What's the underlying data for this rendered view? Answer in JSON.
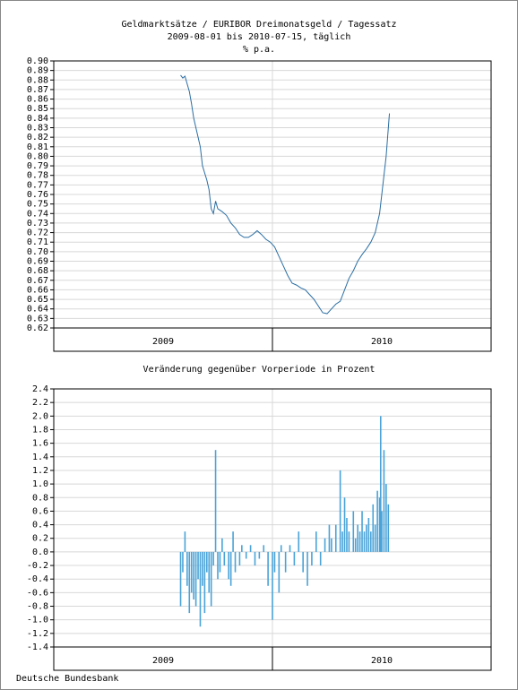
{
  "chart_data": [
    {
      "type": "line",
      "title": "Geldmarktsätze / EURIBOR Dreimonatsgeld / Tagessatz",
      "subtitle": "2009-08-01 bis 2010-07-15, täglich",
      "y_label": "% p.a.",
      "color": "#2b6ea3",
      "grid": true,
      "xlim": [
        2009,
        2011
      ],
      "xticks": [
        2009,
        2010,
        2011
      ],
      "xlabels": [
        2009,
        2010
      ],
      "ylim": [
        0.62,
        0.9
      ],
      "yticks": [
        0.62,
        0.63,
        0.64,
        0.65,
        0.66,
        0.67,
        0.68,
        0.69,
        {
          "value": 0.7,
          "label": "0.70"
        },
        0.71,
        0.72,
        0.73,
        0.74,
        0.75,
        0.76,
        0.77,
        0.78,
        0.79,
        {
          "value": 0.8,
          "label": "0.80"
        },
        0.81,
        0.82,
        0.83,
        0.84,
        0.85,
        0.86,
        0.87,
        0.88,
        0.89,
        {
          "value": 0.9,
          "label": "0.90"
        }
      ],
      "x": [
        2009.58,
        2009.59,
        2009.6,
        2009.62,
        2009.63,
        2009.64,
        2009.66,
        2009.67,
        2009.68,
        2009.7,
        2009.71,
        2009.72,
        2009.73,
        2009.74,
        2009.75,
        2009.77,
        2009.79,
        2009.81,
        2009.83,
        2009.85,
        2009.87,
        2009.89,
        2009.91,
        2009.93,
        2009.95,
        2009.97,
        2009.99,
        2010.01,
        2010.03,
        2010.05,
        2010.07,
        2010.09,
        2010.11,
        2010.13,
        2010.15,
        2010.17,
        2010.19,
        2010.21,
        2010.23,
        2010.25,
        2010.27,
        2010.29,
        2010.31,
        2010.33,
        2010.35,
        2010.37,
        2010.39,
        2010.41,
        2010.43,
        2010.45,
        2010.47,
        2010.49,
        2010.5,
        2010.51,
        2010.52,
        2010.53,
        2010.535
      ],
      "values": [
        0.885,
        0.882,
        0.884,
        0.868,
        0.855,
        0.84,
        0.82,
        0.81,
        0.79,
        0.775,
        0.765,
        0.745,
        0.74,
        0.753,
        0.745,
        0.742,
        0.738,
        0.73,
        0.725,
        0.718,
        0.715,
        0.715,
        0.718,
        0.722,
        0.718,
        0.713,
        0.71,
        0.705,
        0.695,
        0.685,
        0.675,
        0.667,
        0.665,
        0.662,
        0.66,
        0.655,
        0.65,
        0.643,
        0.636,
        0.635,
        0.64,
        0.645,
        0.648,
        0.66,
        0.672,
        0.68,
        0.69,
        0.697,
        0.703,
        0.71,
        0.72,
        0.74,
        0.76,
        0.78,
        0.8,
        0.83,
        0.845
      ]
    },
    {
      "type": "bar",
      "title": "Veränderung gegenüber Vorperiode in Prozent",
      "color": "#4aa3d8",
      "grid": true,
      "xlim": [
        2009,
        2011
      ],
      "xticks": [
        2009,
        2010,
        2011
      ],
      "xlabels": [
        2009,
        2010
      ],
      "ylim": [
        -1.4,
        2.4
      ],
      "yticks": [
        -1.4,
        -1.2,
        {
          "value": -1,
          "label": "-1.0"
        },
        -0.8,
        -0.6,
        -0.4,
        -0.2,
        {
          "value": 0,
          "label": "0.0"
        },
        0.2,
        0.4,
        0.6,
        0.8,
        {
          "value": 1,
          "label": "1.0"
        },
        1.2,
        1.4,
        1.6,
        1.8,
        {
          "value": 2,
          "label": "2.0"
        },
        2.2,
        2.4
      ],
      "x": [
        2009.58,
        2009.59,
        2009.6,
        2009.61,
        2009.62,
        2009.63,
        2009.64,
        2009.65,
        2009.66,
        2009.67,
        2009.68,
        2009.69,
        2009.7,
        2009.71,
        2009.72,
        2009.73,
        2009.74,
        2009.75,
        2009.76,
        2009.77,
        2009.78,
        2009.8,
        2009.81,
        2009.82,
        2009.83,
        2009.85,
        2009.86,
        2009.88,
        2009.9,
        2009.92,
        2009.94,
        2009.96,
        2009.98,
        2010,
        2010.01,
        2010.03,
        2010.04,
        2010.06,
        2010.08,
        2010.1,
        2010.12,
        2010.14,
        2010.16,
        2010.18,
        2010.2,
        2010.22,
        2010.24,
        2010.26,
        2010.27,
        2010.29,
        2010.31,
        2010.32,
        2010.33,
        2010.34,
        2010.35,
        2010.37,
        2010.38,
        2010.39,
        2010.4,
        2010.41,
        2010.42,
        2010.43,
        2010.44,
        2010.45,
        2010.46,
        2010.47,
        2010.48,
        2010.49,
        2010.495,
        2010.5,
        2010.51,
        2010.52,
        2010.53
      ],
      "values": [
        -0.8,
        -0.3,
        0.3,
        -0.5,
        -0.9,
        -0.6,
        -0.7,
        -0.8,
        -0.4,
        -1.1,
        -0.5,
        -0.9,
        -0.3,
        -0.6,
        -0.8,
        -0.2,
        1.5,
        -0.4,
        -0.3,
        0.2,
        -0.2,
        -0.4,
        -0.5,
        0.3,
        -0.3,
        -0.2,
        0.1,
        -0.1,
        0.1,
        -0.2,
        -0.1,
        0.1,
        -0.5,
        -1,
        -0.3,
        -0.6,
        0.1,
        -0.3,
        0.1,
        -0.2,
        0.3,
        -0.3,
        -0.5,
        -0.2,
        0.3,
        -0.2,
        0.2,
        0.4,
        0.2,
        0.4,
        1.2,
        0.3,
        0.8,
        0.5,
        0.3,
        0.6,
        0.2,
        0.4,
        0.3,
        0.6,
        0.3,
        0.4,
        0.5,
        0.3,
        0.7,
        0.4,
        0.9,
        0.8,
        2,
        0.6,
        1.5,
        1,
        0.7
      ]
    }
  ],
  "source": "Deutsche Bundesbank"
}
